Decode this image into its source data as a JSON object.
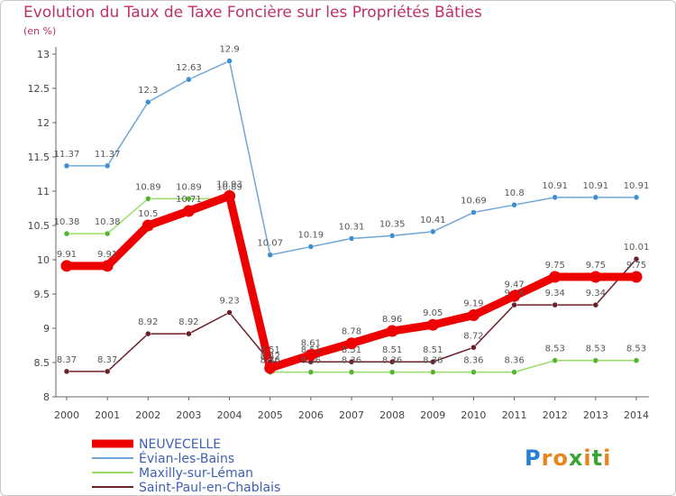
{
  "title": "Evolution du Taux de Taxe Foncière sur les Propriétés Bâties",
  "unit": "(en %)",
  "logo": {
    "letters": [
      "P",
      "r",
      "o",
      "x",
      "i",
      "t",
      "i"
    ],
    "colors": [
      "#2a7fd4",
      "#e8851a",
      "#e8851a",
      "#3aa535",
      "#e8851a",
      "#3aa535",
      "#e8851a"
    ]
  },
  "chart_data": {
    "type": "line",
    "title": "Evolution du Taux de Taxe Foncière sur les Propriétés Bâties",
    "ylabel": "(en %)",
    "x": [
      2000,
      2001,
      2002,
      2003,
      2004,
      2005,
      2006,
      2007,
      2008,
      2009,
      2010,
      2011,
      2012,
      2013,
      2014
    ],
    "ylim": [
      8,
      13
    ],
    "yticks": [
      8,
      8.5,
      9,
      9.5,
      10,
      10.5,
      11,
      11.5,
      12,
      12.5,
      13
    ],
    "ytick_labels": [
      "8",
      "8.5",
      "9",
      "9.5",
      "10",
      "10.5",
      "11",
      "11.5",
      "12",
      "12.5",
      "13"
    ],
    "legend_position": "bottom-left",
    "series": [
      {
        "name": "Saint-Paul-en-Chablais",
        "color": "#6b1f28",
        "marker_color": "#6b1f28",
        "emphasis": false,
        "values": [
          8.37,
          8.37,
          8.92,
          8.92,
          9.23,
          8.51,
          8.51,
          8.51,
          8.51,
          8.51,
          8.72,
          9.34,
          9.34,
          9.34,
          10.01
        ],
        "labels": [
          "8.37",
          "8.37",
          "8.92",
          "8.92",
          "9.23",
          "8.51",
          "8.51",
          "8.51",
          "8.51",
          "8.51",
          "8.72",
          "9.34",
          "9.34",
          "9.34",
          "10.01"
        ]
      },
      {
        "name": "Maxilly-sur-Léman",
        "color": "#99dd66",
        "marker_color": "#55b52a",
        "emphasis": false,
        "values": [
          10.38,
          10.38,
          10.89,
          10.89,
          10.89,
          8.36,
          8.36,
          8.36,
          8.36,
          8.36,
          8.36,
          8.36,
          8.53,
          8.53,
          8.53
        ],
        "labels": [
          "10.38",
          "10.38",
          "10.89",
          "10.89",
          "10.89",
          "8.36",
          "8.36",
          "8.36",
          "8.36",
          "8.36",
          "8.36",
          "8.36",
          "8.53",
          "8.53",
          "8.53"
        ]
      },
      {
        "name": "Évian-les-Bains",
        "color": "#6fa6d6",
        "marker_color": "#3e8ed0",
        "emphasis": false,
        "values": [
          11.37,
          11.37,
          12.3,
          12.63,
          12.9,
          10.07,
          10.19,
          10.31,
          10.35,
          10.41,
          10.69,
          10.8,
          10.91,
          10.91,
          10.91
        ],
        "labels": [
          "11.37",
          "11.37",
          "12.3",
          "12.63",
          "12.9",
          "10.07",
          "10.19",
          "10.31",
          "10.35",
          "10.41",
          "10.69",
          "10.8",
          "10.91",
          "10.91",
          "10.91"
        ]
      },
      {
        "name": "NEUVECELLE",
        "color": "#ee0000",
        "marker_color": "#ee0000",
        "emphasis": true,
        "values": [
          9.91,
          9.91,
          10.5,
          10.71,
          10.93,
          8.42,
          8.61,
          8.78,
          8.96,
          9.05,
          9.19,
          9.47,
          9.75,
          9.75,
          9.75
        ],
        "labels": [
          "9.91",
          "9.91",
          "10.5",
          "10.71",
          "10.93",
          "8.42",
          "8.61",
          "8.78",
          "8.96",
          "9.05",
          "9.19",
          "9.47",
          "9.75",
          "9.75",
          "9.75"
        ]
      }
    ],
    "legend_order": [
      "NEUVECELLE",
      "Évian-les-Bains",
      "Maxilly-sur-Léman",
      "Saint-Paul-en-Chablais"
    ]
  }
}
